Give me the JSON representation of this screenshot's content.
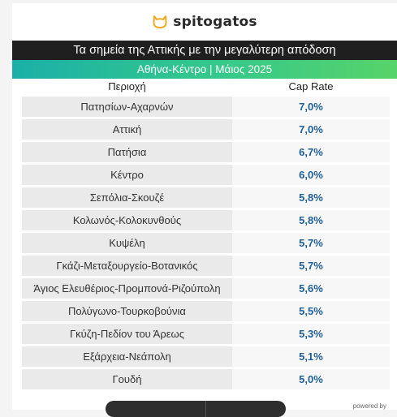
{
  "brand": {
    "name": "spitogatos",
    "icon": "cat-head-icon",
    "accent": "#f5a623"
  },
  "header": {
    "title": "Τα σημεία της Αττικής με την μεγαλύτερη απόδοση",
    "subtitle": "Αθήνα-Κέντρο | Μάιος 2025"
  },
  "table": {
    "columns": [
      "Περιοχή",
      "Cap Rate"
    ],
    "rows": [
      {
        "area": "Πατησίων-Αχαρνών",
        "rate": "7,0%"
      },
      {
        "area": "Αττική",
        "rate": "7,0%"
      },
      {
        "area": "Πατήσια",
        "rate": "6,7%"
      },
      {
        "area": "Κέντρο",
        "rate": "6,0%"
      },
      {
        "area": "Σεπόλια-Σκουζέ",
        "rate": "5,8%"
      },
      {
        "area": "Κολωνός-Κολοκυνθούς",
        "rate": "5,8%"
      },
      {
        "area": "Κυψέλη",
        "rate": "5,7%"
      },
      {
        "area": "Γκάζι-Μεταξουργείο-Βοτανικός",
        "rate": "5,7%"
      },
      {
        "area": "Άγιος Ελευθέριος-Προμπονά-Ριζούπολη",
        "rate": "5,6%"
      },
      {
        "area": "Πολύγωνο-Τουρκοβούνια",
        "rate": "5,5%"
      },
      {
        "area": "Γκύζη-Πεδίον του Άρεως",
        "rate": "5,3%"
      },
      {
        "area": "Εξάρχεια-Νεάπολη",
        "rate": "5,1%"
      },
      {
        "area": "Γουδή",
        "rate": "5,0%"
      }
    ]
  },
  "footer": {
    "powered_by": "powered by"
  }
}
